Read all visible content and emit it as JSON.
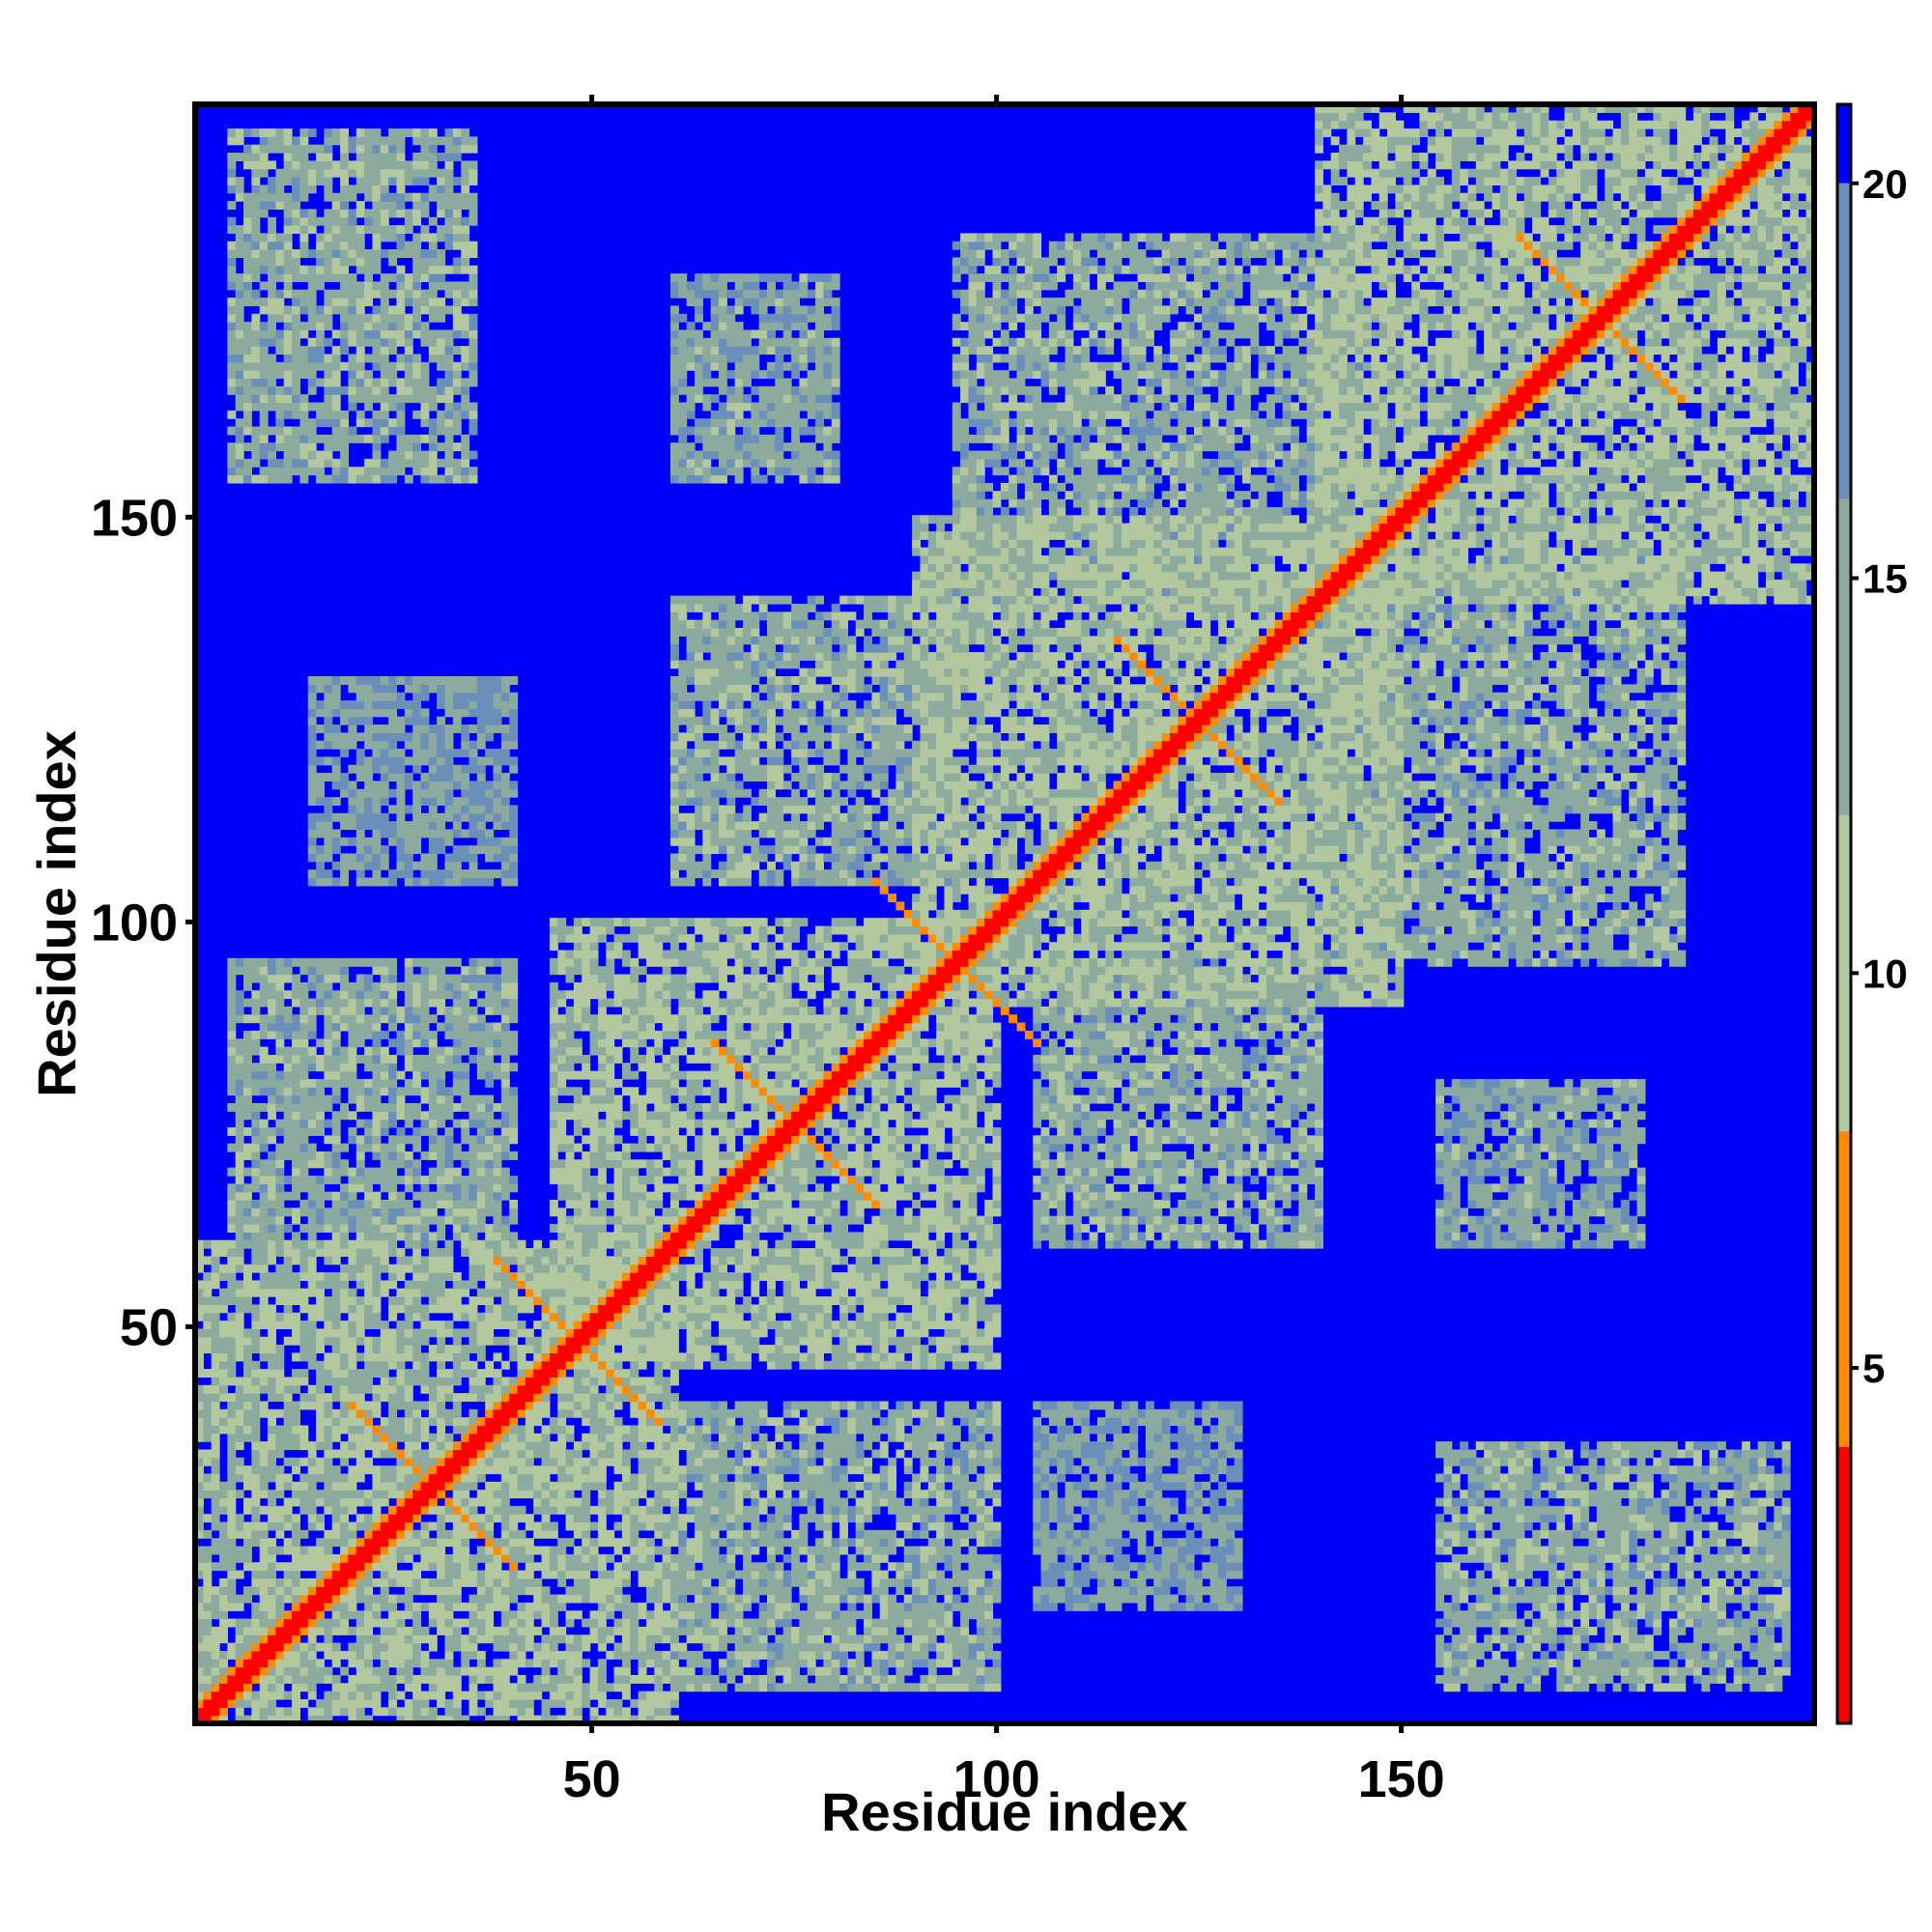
{
  "chart_data": {
    "type": "heatmap",
    "title": "",
    "xlabel": "Residue index",
    "ylabel": "Residue index",
    "xlim": [
      1,
      201
    ],
    "ylim": [
      1,
      201
    ],
    "n_residues": 201,
    "x_ticks": [
      50,
      100,
      150
    ],
    "y_ticks": [
      50,
      100,
      150
    ],
    "colorbar": {
      "ticks": [
        5,
        10,
        15,
        20
      ],
      "range": [
        0.5,
        21
      ],
      "bands": [
        {
          "from": 0.5,
          "to": 4.0,
          "color": "#ff0000"
        },
        {
          "from": 4.0,
          "to": 8.0,
          "color": "#ff8c00"
        },
        {
          "from": 8.0,
          "to": 12.0,
          "color": "#b4c8a0"
        },
        {
          "from": 12.0,
          "to": 16.0,
          "color": "#8cab9e"
        },
        {
          "from": 16.0,
          "to": 20.0,
          "color": "#6a8fb8"
        },
        {
          "from": 20.0,
          "to": 21.0,
          "color": "#0000ff"
        }
      ]
    },
    "background_value": 21,
    "diagonal_value": 2,
    "contact_blocks": [
      {
        "x": [
          1,
          60
        ],
        "y": [
          1,
          60
        ],
        "value": 11
      },
      {
        "x": [
          45,
          100
        ],
        "y": [
          45,
          100
        ],
        "value": 11
      },
      {
        "x": [
          90,
          150
        ],
        "y": [
          90,
          150
        ],
        "value": 11
      },
      {
        "x": [
          140,
          201
        ],
        "y": [
          140,
          201
        ],
        "value": 11
      },
      {
        "x": [
          5,
          40
        ],
        "y": [
          60,
          95
        ],
        "value": 13
      },
      {
        "x": [
          60,
          100
        ],
        "y": [
          5,
          40
        ],
        "value": 13
      },
      {
        "x": [
          60,
          95
        ],
        "y": [
          105,
          140
        ],
        "value": 13
      },
      {
        "x": [
          105,
          140
        ],
        "y": [
          60,
          95
        ],
        "value": 13
      },
      {
        "x": [
          95,
          145
        ],
        "y": [
          140,
          185
        ],
        "value": 13
      },
      {
        "x": [
          140,
          185
        ],
        "y": [
          95,
          145
        ],
        "value": 13
      },
      {
        "x": [
          5,
          35
        ],
        "y": [
          155,
          198
        ],
        "value": 13
      },
      {
        "x": [
          155,
          198
        ],
        "y": [
          5,
          35
        ],
        "value": 13
      },
      {
        "x": [
          60,
          80
        ],
        "y": [
          155,
          180
        ],
        "value": 14
      },
      {
        "x": [
          155,
          180
        ],
        "y": [
          60,
          80
        ],
        "value": 14
      },
      {
        "x": [
          15,
          40
        ],
        "y": [
          105,
          130
        ],
        "value": 15
      },
      {
        "x": [
          105,
          130
        ],
        "y": [
          15,
          40
        ],
        "value": 15
      }
    ],
    "crossing_strands": [
      {
        "center": [
          30,
          30
        ],
        "value": 6
      },
      {
        "center": [
          75,
          75
        ],
        "value": 6
      },
      {
        "center": [
          125,
          125
        ],
        "value": 6
      },
      {
        "center": [
          175,
          175
        ],
        "value": 6
      },
      {
        "center": [
          48,
          48
        ],
        "value": 6
      },
      {
        "center": [
          95,
          95
        ],
        "value": 6
      }
    ]
  }
}
